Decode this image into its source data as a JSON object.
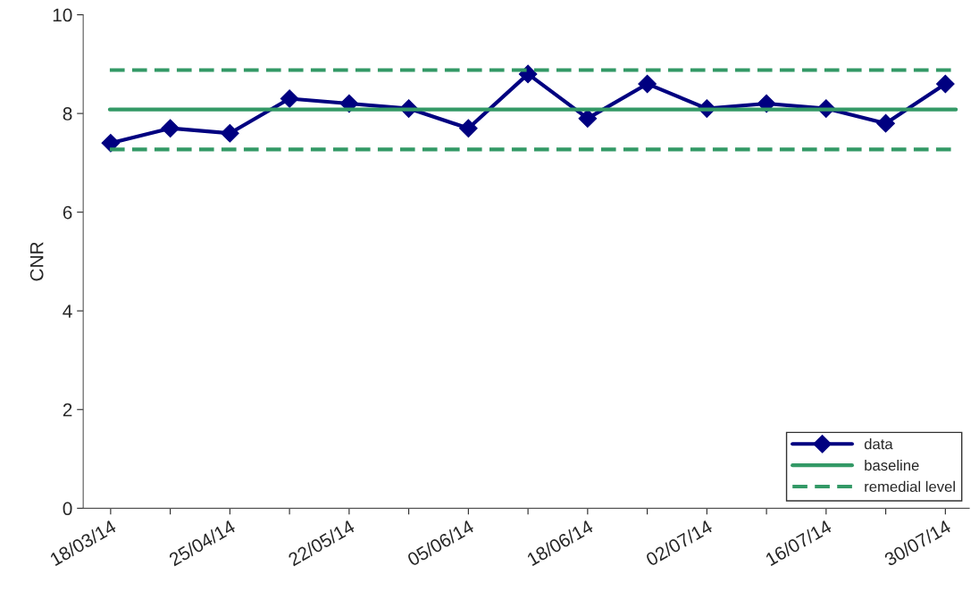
{
  "chart_data": {
    "type": "line",
    "ylabel": "CNR",
    "categories": [
      "18/03/14",
      null,
      "25/04/14",
      null,
      "22/05/14",
      null,
      "05/06/14",
      null,
      "18/06/14",
      null,
      "02/07/14",
      null,
      "16/07/14",
      null,
      "30/07/14"
    ],
    "series": [
      {
        "name": "data",
        "color": "#000080",
        "values": [
          7.4,
          7.7,
          7.6,
          8.3,
          8.2,
          8.1,
          7.7,
          8.8,
          7.9,
          8.6,
          8.1,
          8.2,
          8.1,
          7.8,
          8.6
        ]
      }
    ],
    "marker": "diamond",
    "line_style": "solid",
    "ref_lines": [
      {
        "axis": "y",
        "value": 8.08,
        "label": "baseline",
        "color": "#339966",
        "line_style": "solid"
      },
      {
        "axis": "y",
        "value": 8.88,
        "label": "remedial level",
        "color": "#339966",
        "line_style": "dashed"
      },
      {
        "axis": "y",
        "value": 7.27,
        "label": null,
        "color": "#339966",
        "line_style": "dashed"
      }
    ],
    "ylim": [
      0,
      10
    ],
    "yticks": [
      0,
      2,
      4,
      6,
      8,
      10
    ],
    "grid": false,
    "legend": "bottom right"
  }
}
